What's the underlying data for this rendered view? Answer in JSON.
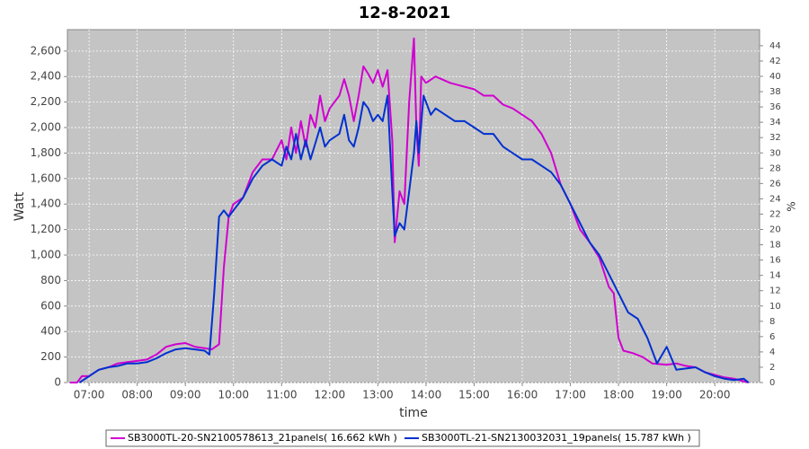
{
  "chart_data": {
    "type": "line",
    "title": "12-8-2021",
    "xlabel": "time",
    "ylabel": "Watt",
    "y2label": "%",
    "xlim": [
      6.55,
      20.93
    ],
    "xticks": [
      {
        "value": 7,
        "label": "07:00"
      },
      {
        "value": 8,
        "label": "08:00"
      },
      {
        "value": 9,
        "label": "09:00"
      },
      {
        "value": 10,
        "label": "10:00"
      },
      {
        "value": 11,
        "label": "11:00"
      },
      {
        "value": 12,
        "label": "12:00"
      },
      {
        "value": 13,
        "label": "13:00"
      },
      {
        "value": 14,
        "label": "14:00"
      },
      {
        "value": 15,
        "label": "15:00"
      },
      {
        "value": 16,
        "label": "16:00"
      },
      {
        "value": 17,
        "label": "17:00"
      },
      {
        "value": 18,
        "label": "18:00"
      },
      {
        "value": 19,
        "label": "19:00"
      },
      {
        "value": 20,
        "label": "20:00"
      }
    ],
    "ylim": [
      0,
      2768
    ],
    "yticks": [
      0,
      200,
      400,
      600,
      800,
      {
        "value": 1000,
        "label": "1,000"
      },
      {
        "value": 1200,
        "label": "1,200"
      },
      {
        "value": 1400,
        "label": "1,400"
      },
      {
        "value": 1600,
        "label": "1,600"
      },
      {
        "value": 1800,
        "label": "1,800"
      },
      {
        "value": 2000,
        "label": "2,000"
      },
      {
        "value": 2200,
        "label": "2,200"
      },
      {
        "value": 2400,
        "label": "2,400"
      },
      {
        "value": 2600,
        "label": "2,600"
      }
    ],
    "y2lim": [
      0,
      46.1
    ],
    "y2ticks": [
      0,
      2,
      4,
      6,
      8,
      10,
      12,
      14,
      16,
      18,
      20,
      22,
      24,
      26,
      28,
      30,
      32,
      34,
      36,
      38,
      40,
      42,
      44
    ],
    "grid": true,
    "series": [
      {
        "name": "SB3000TL-20-SN2100578613_21panels( 16.662 kWh )",
        "color": "#d000d0",
        "x": [
          6.6,
          6.75,
          6.85,
          7.0,
          7.2,
          7.4,
          7.6,
          7.8,
          8.0,
          8.2,
          8.4,
          8.6,
          8.8,
          9.0,
          9.2,
          9.4,
          9.55,
          9.7,
          9.8,
          9.9,
          10.0,
          10.2,
          10.4,
          10.6,
          10.8,
          11.0,
          11.1,
          11.2,
          11.3,
          11.4,
          11.5,
          11.6,
          11.7,
          11.8,
          11.9,
          12.0,
          12.2,
          12.3,
          12.4,
          12.5,
          12.6,
          12.7,
          12.8,
          12.9,
          13.0,
          13.1,
          13.2,
          13.3,
          13.35,
          13.45,
          13.55,
          13.65,
          13.75,
          13.8,
          13.85,
          13.9,
          14.0,
          14.2,
          14.5,
          14.8,
          15.0,
          15.2,
          15.4,
          15.6,
          15.8,
          16.0,
          16.2,
          16.4,
          16.6,
          16.8,
          17.0,
          17.2,
          17.4,
          17.6,
          17.8,
          17.9,
          18.0,
          18.1,
          18.3,
          18.5,
          18.7,
          19.0,
          19.2,
          19.4,
          19.6,
          19.8,
          20.0,
          20.2,
          20.4,
          20.6,
          20.7
        ],
        "values": [
          0,
          0,
          50,
          50,
          100,
          120,
          150,
          160,
          170,
          180,
          220,
          280,
          300,
          310,
          280,
          270,
          260,
          300,
          900,
          1300,
          1400,
          1450,
          1650,
          1750,
          1750,
          1900,
          1750,
          2000,
          1800,
          2050,
          1850,
          2100,
          2000,
          2250,
          2050,
          2150,
          2250,
          2380,
          2250,
          2050,
          2250,
          2480,
          2420,
          2350,
          2450,
          2320,
          2450,
          1900,
          1100,
          1500,
          1400,
          2200,
          2700,
          2000,
          1700,
          2400,
          2350,
          2400,
          2350,
          2320,
          2300,
          2250,
          2250,
          2180,
          2150,
          2100,
          2050,
          1950,
          1800,
          1550,
          1400,
          1200,
          1100,
          980,
          750,
          700,
          350,
          250,
          230,
          200,
          150,
          140,
          150,
          130,
          120,
          80,
          60,
          40,
          30,
          10,
          0
        ]
      },
      {
        "name": "SB3000TL-21-SN2130032031_19panels( 15.787 kWh )",
        "color": "#0030d0",
        "x": [
          6.8,
          7.0,
          7.2,
          7.4,
          7.6,
          7.8,
          8.0,
          8.2,
          8.4,
          8.6,
          8.8,
          9.0,
          9.2,
          9.4,
          9.5,
          9.6,
          9.7,
          9.8,
          9.9,
          10.0,
          10.2,
          10.4,
          10.6,
          10.8,
          11.0,
          11.1,
          11.2,
          11.3,
          11.4,
          11.5,
          11.6,
          11.8,
          11.9,
          12.0,
          12.2,
          12.3,
          12.4,
          12.5,
          12.6,
          12.7,
          12.8,
          12.9,
          13.0,
          13.1,
          13.2,
          13.3,
          13.35,
          13.45,
          13.55,
          13.65,
          13.75,
          13.8,
          13.85,
          13.95,
          14.1,
          14.2,
          14.4,
          14.6,
          14.8,
          15.0,
          15.2,
          15.4,
          15.6,
          15.8,
          16.0,
          16.2,
          16.4,
          16.6,
          16.8,
          17.0,
          17.2,
          17.4,
          17.6,
          17.8,
          18.0,
          18.2,
          18.4,
          18.6,
          18.8,
          19.0,
          19.2,
          19.4,
          19.6,
          19.8,
          20.0,
          20.2,
          20.4,
          20.6,
          20.7
        ],
        "values": [
          0,
          50,
          100,
          120,
          130,
          150,
          150,
          160,
          190,
          230,
          260,
          270,
          260,
          250,
          220,
          700,
          1300,
          1350,
          1300,
          1350,
          1450,
          1600,
          1700,
          1750,
          1700,
          1850,
          1750,
          1950,
          1750,
          1900,
          1750,
          2000,
          1850,
          1900,
          1950,
          2100,
          1900,
          1850,
          2000,
          2200,
          2150,
          2050,
          2100,
          2050,
          2250,
          1500,
          1150,
          1250,
          1200,
          1500,
          1800,
          2050,
          1800,
          2250,
          2100,
          2150,
          2100,
          2050,
          2050,
          2000,
          1950,
          1950,
          1850,
          1800,
          1750,
          1750,
          1700,
          1650,
          1550,
          1400,
          1250,
          1100,
          1000,
          850,
          700,
          550,
          500,
          350,
          150,
          280,
          100,
          110,
          120,
          80,
          50,
          30,
          20,
          30,
          0
        ]
      }
    ]
  }
}
